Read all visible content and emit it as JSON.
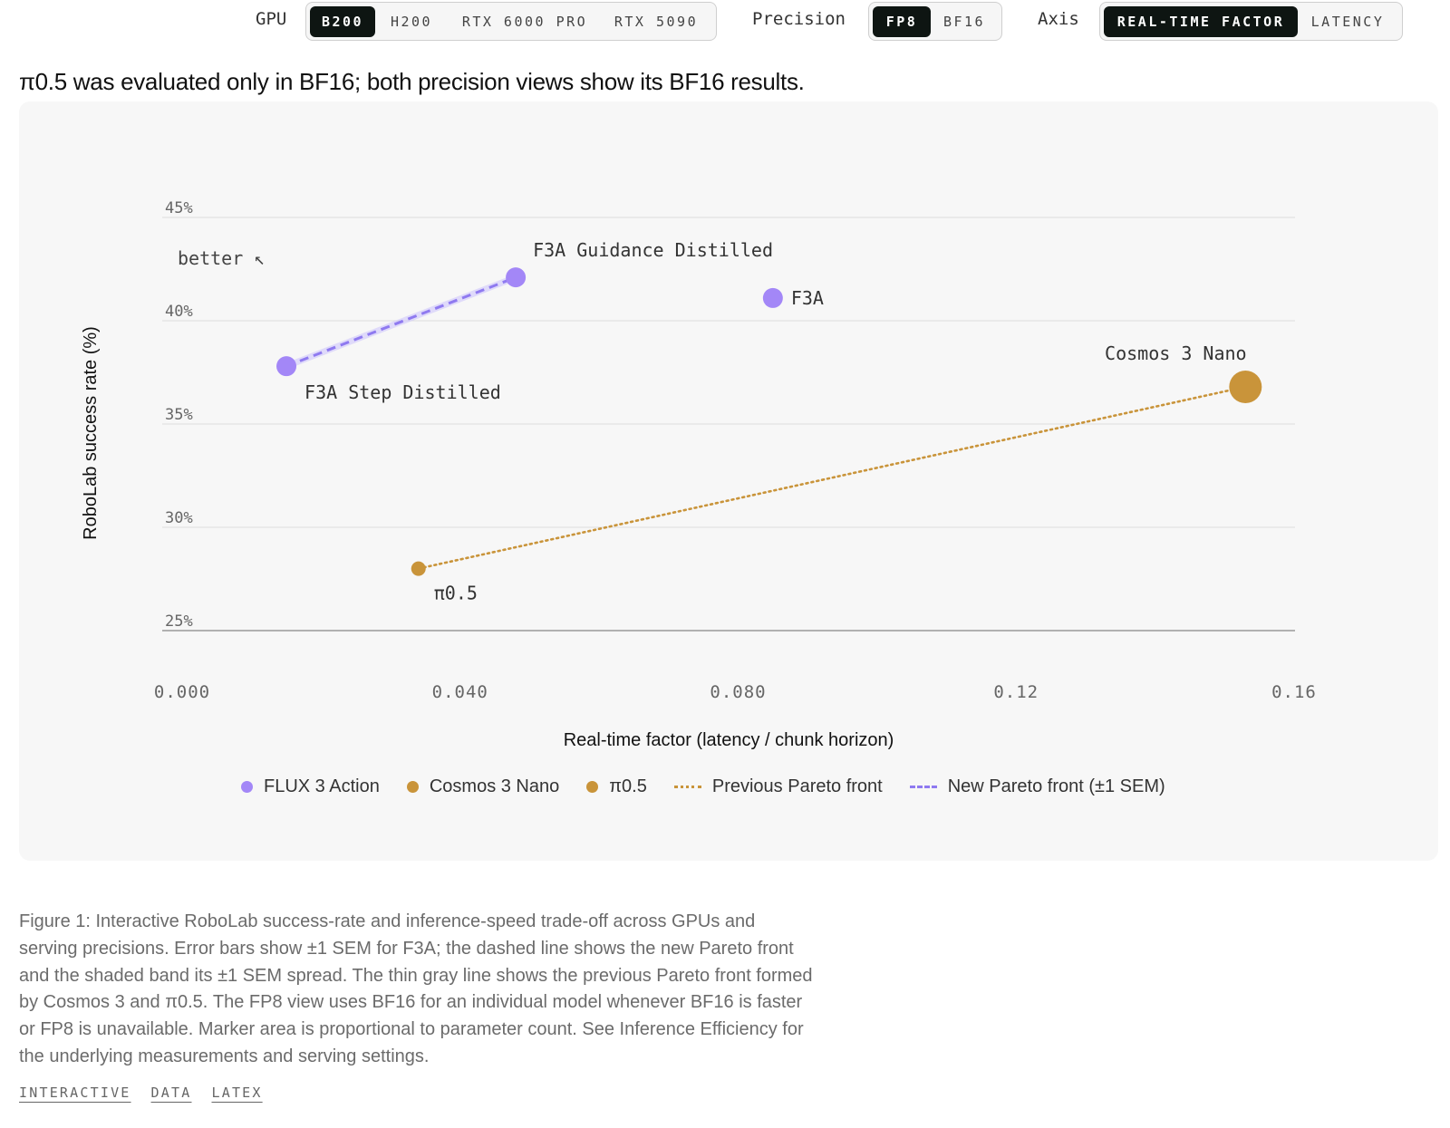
{
  "controls": {
    "gpu": {
      "label": "GPU",
      "options": [
        "B200",
        "H200",
        "RTX 6000 PRO",
        "RTX 5090"
      ],
      "selected": "B200"
    },
    "precision": {
      "label": "Precision",
      "options": [
        "FP8",
        "BF16"
      ],
      "selected": "FP8"
    },
    "axis": {
      "label": "Axis",
      "options": [
        "REAL-TIME FACTOR",
        "LATENCY"
      ],
      "selected": "REAL-TIME FACTOR"
    }
  },
  "note": "π0.5 was evaluated only in BF16; both precision views show its BF16 results.",
  "chart_data": {
    "type": "scatter",
    "title": "",
    "xlabel": "Real-time factor (latency / chunk horizon)",
    "ylabel": "RoboLab success rate (%)",
    "xlim": [
      0,
      0.16
    ],
    "ylim": [
      25,
      45
    ],
    "x_ticks": [
      0,
      0.04,
      0.08,
      0.12,
      0.16
    ],
    "x_tick_labels": [
      "0.000",
      "0.040",
      "0.080",
      "0.12",
      "0.16"
    ],
    "y_ticks": [
      25,
      30,
      35,
      40,
      45
    ],
    "y_tick_labels": [
      "25%",
      "30%",
      "35%",
      "40%",
      "45%"
    ],
    "grid": "horizontal",
    "direction_hint": "better ↖",
    "colors": {
      "flux": "#a387f7",
      "cosmos": "#c9943a",
      "pi": "#c9943a",
      "new_front": "#8f7af0",
      "previous_front": "#c9943a"
    },
    "points": [
      {
        "label": "F3A Step Distilled",
        "group": "FLUX 3 Action",
        "x": 0.015,
        "y": 37.8,
        "size": "medium"
      },
      {
        "label": "F3A Guidance Distilled",
        "group": "FLUX 3 Action",
        "x": 0.048,
        "y": 42.1,
        "size": "medium"
      },
      {
        "label": "F3A",
        "group": "FLUX 3 Action",
        "x": 0.085,
        "y": 41.1,
        "size": "medium"
      },
      {
        "label": "Cosmos 3 Nano",
        "group": "Cosmos 3 Nano",
        "x": 0.153,
        "y": 36.8,
        "size": "large"
      },
      {
        "label": "π0.5",
        "group": "π0.5",
        "x": 0.034,
        "y": 28.0,
        "size": "small"
      }
    ],
    "new_pareto_front": [
      [
        0.015,
        37.8
      ],
      [
        0.048,
        42.1
      ]
    ],
    "previous_pareto_front": [
      [
        0.034,
        28.0
      ],
      [
        0.153,
        36.8
      ]
    ],
    "legend": [
      "FLUX 3 Action",
      "Cosmos 3 Nano",
      "π0.5",
      "Previous Pareto front",
      "New Pareto front (±1 SEM)"
    ],
    "legend_position": "bottom"
  },
  "caption": "Figure 1: Interactive RoboLab success-rate and inference-speed trade-off across GPUs and serving precisions. Error bars show ±1 SEM for F3A; the dashed line shows the new Pareto front and the shaded band its ±1 SEM spread. The thin gray line shows the previous Pareto front formed by Cosmos 3 and π0.5. The FP8 view uses BF16 for an individual model whenever BF16 is faster or FP8 is unavailable. Marker area is proportional to parameter count. See Inference Efficiency for the underlying measurements and serving settings.",
  "links": [
    "INTERACTIVE",
    "DATA",
    "LATEX"
  ]
}
